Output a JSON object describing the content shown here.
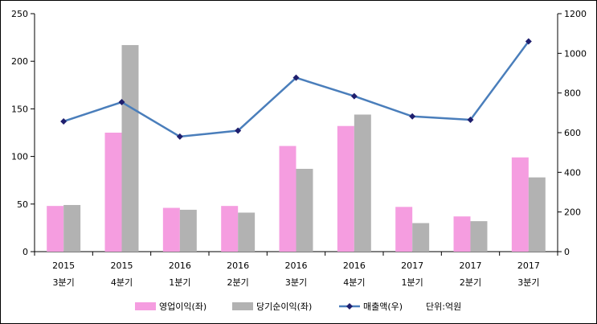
{
  "chart_data": {
    "type": "bar",
    "categories": [
      [
        "2015",
        "3분기"
      ],
      [
        "2015",
        "4분기"
      ],
      [
        "2016",
        "1분기"
      ],
      [
        "2016",
        "2분기"
      ],
      [
        "2016",
        "3분기"
      ],
      [
        "2016",
        "4분기"
      ],
      [
        "2017",
        "1분기"
      ],
      [
        "2017",
        "2분기"
      ],
      [
        "2017",
        "3분기"
      ]
    ],
    "series": [
      {
        "name": "영업이익(좌)",
        "kind": "bar",
        "axis": "left",
        "color": "#f59de0",
        "values": [
          48,
          125,
          46,
          48,
          111,
          132,
          47,
          37,
          99
        ]
      },
      {
        "name": "당기순이익(좌)",
        "kind": "bar",
        "axis": "left",
        "color": "#b2b2b2",
        "values": [
          49,
          217,
          44,
          41,
          87,
          144,
          30,
          32,
          78
        ]
      },
      {
        "name": "매출액(우)",
        "kind": "line",
        "axis": "right",
        "color": "#4a7ebb",
        "marker_color": "#1f1f6e",
        "values": [
          657,
          754,
          580,
          610,
          877,
          784,
          682,
          665,
          1060
        ]
      }
    ],
    "y_left": {
      "min": 0,
      "max": 250,
      "step": 50,
      "ticks": [
        "0",
        "50",
        "100",
        "150",
        "200",
        "250"
      ]
    },
    "y_right": {
      "min": 0,
      "max": 1200,
      "step": 200,
      "ticks": [
        "0",
        "200",
        "400",
        "600",
        "800",
        "1000",
        "1200"
      ]
    },
    "unit_note": "단위:억원",
    "legend_position": "bottom",
    "grid": false
  }
}
